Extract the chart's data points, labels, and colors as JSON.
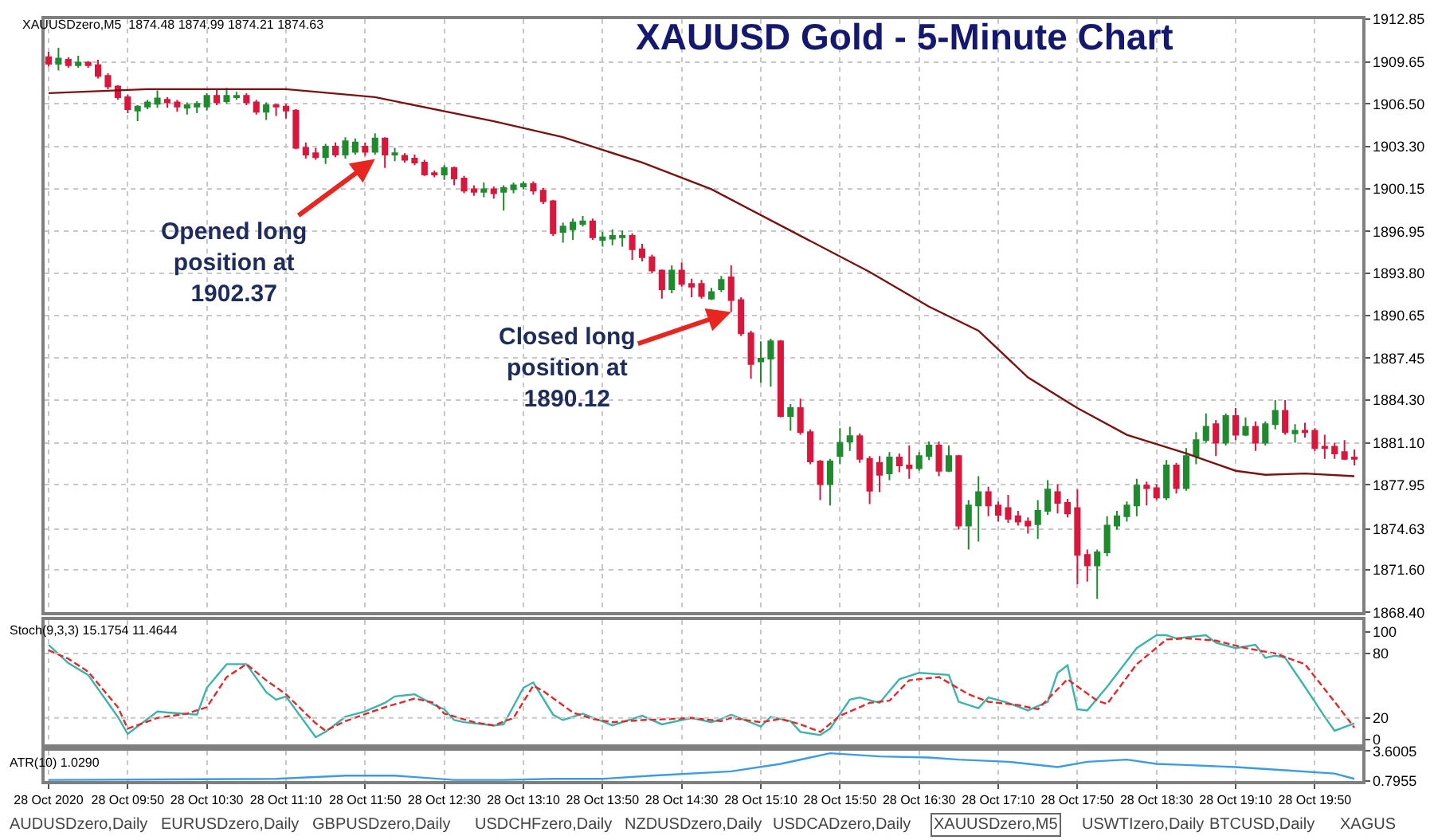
{
  "chart_data": [
    {
      "type": "candlestick",
      "title": "XAUUSD Gold - 5-Minute Chart",
      "subtitle": "XAUUSDzero,M5  1874.48 1874.99 1874.21 1874.63",
      "x": [
        "2020-10-28T09:10",
        "2020-10-28T09:15",
        "2020-10-28T09:20",
        "2020-10-28T09:25",
        "2020-10-28T09:30",
        "2020-10-28T09:35",
        "2020-10-28T09:40",
        "2020-10-28T09:45",
        "2020-10-28T09:50",
        "2020-10-28T09:55",
        "2020-10-28T10:00",
        "2020-10-28T10:05",
        "2020-10-28T10:10",
        "2020-10-28T10:15",
        "2020-10-28T10:20",
        "2020-10-28T10:25",
        "2020-10-28T10:30",
        "2020-10-28T10:35",
        "2020-10-28T10:40",
        "2020-10-28T10:45",
        "2020-10-28T10:50",
        "2020-10-28T10:55",
        "2020-10-28T11:00",
        "2020-10-28T11:05",
        "2020-10-28T11:10",
        "2020-10-28T11:15",
        "2020-10-28T11:20",
        "2020-10-28T11:25",
        "2020-10-28T11:30",
        "2020-10-28T11:35",
        "2020-10-28T11:40",
        "2020-10-28T11:45",
        "2020-10-28T11:50",
        "2020-10-28T11:55",
        "2020-10-28T12:00",
        "2020-10-28T12:05",
        "2020-10-28T12:10",
        "2020-10-28T12:15",
        "2020-10-28T12:20",
        "2020-10-28T12:25",
        "2020-10-28T12:30",
        "2020-10-28T12:35",
        "2020-10-28T12:40",
        "2020-10-28T12:45",
        "2020-10-28T12:50",
        "2020-10-28T12:55",
        "2020-10-28T13:00",
        "2020-10-28T13:05",
        "2020-10-28T13:10",
        "2020-10-28T13:15",
        "2020-10-28T13:20",
        "2020-10-28T13:25",
        "2020-10-28T13:30",
        "2020-10-28T13:35",
        "2020-10-28T13:40",
        "2020-10-28T13:45",
        "2020-10-28T13:50",
        "2020-10-28T13:55",
        "2020-10-28T14:00",
        "2020-10-28T14:05",
        "2020-10-28T14:10",
        "2020-10-28T14:15",
        "2020-10-28T14:20",
        "2020-10-28T14:25",
        "2020-10-28T14:30",
        "2020-10-28T14:35",
        "2020-10-28T14:40",
        "2020-10-28T14:45",
        "2020-10-28T14:50",
        "2020-10-28T14:55",
        "2020-10-28T15:00",
        "2020-10-28T15:05",
        "2020-10-28T15:10",
        "2020-10-28T15:15",
        "2020-10-28T15:20",
        "2020-10-28T15:25",
        "2020-10-28T15:30",
        "2020-10-28T15:35",
        "2020-10-28T15:40",
        "2020-10-28T15:45",
        "2020-10-28T15:50",
        "2020-10-28T15:55",
        "2020-10-28T16:00",
        "2020-10-28T16:05",
        "2020-10-28T16:10",
        "2020-10-28T16:15",
        "2020-10-28T16:20",
        "2020-10-28T16:25",
        "2020-10-28T16:30",
        "2020-10-28T16:35",
        "2020-10-28T16:40",
        "2020-10-28T16:45",
        "2020-10-28T16:50",
        "2020-10-28T16:55",
        "2020-10-28T17:00",
        "2020-10-28T17:05",
        "2020-10-28T17:10",
        "2020-10-28T17:15",
        "2020-10-28T17:20",
        "2020-10-28T17:25",
        "2020-10-28T17:30",
        "2020-10-28T17:35",
        "2020-10-28T17:40",
        "2020-10-28T17:45",
        "2020-10-28T17:50",
        "2020-10-28T17:55",
        "2020-10-28T18:00",
        "2020-10-28T18:05",
        "2020-10-28T18:10",
        "2020-10-28T18:15",
        "2020-10-28T18:20",
        "2020-10-28T18:25",
        "2020-10-28T18:30",
        "2020-10-28T18:35",
        "2020-10-28T18:40",
        "2020-10-28T18:45",
        "2020-10-28T18:50",
        "2020-10-28T18:55",
        "2020-10-28T19:00",
        "2020-10-28T19:05",
        "2020-10-28T19:10",
        "2020-10-28T19:15",
        "2020-10-28T19:20",
        "2020-10-28T19:25",
        "2020-10-28T19:30",
        "2020-10-28T19:35",
        "2020-10-28T19:40",
        "2020-10-28T19:45",
        "2020-10-28T19:50",
        "2020-10-28T19:55",
        "2020-10-28T20:00",
        "2020-10-28T20:05",
        "2020-10-28T20:10"
      ],
      "ohlc": [
        [
          1910.0,
          1910.4,
          1909.3,
          1909.5
        ],
        [
          1909.5,
          1910.7,
          1909.0,
          1909.9
        ],
        [
          1909.8,
          1910.0,
          1909.2,
          1909.4
        ],
        [
          1909.4,
          1910.1,
          1909.2,
          1909.6
        ],
        [
          1909.6,
          1909.7,
          1909.2,
          1909.4
        ],
        [
          1909.4,
          1909.8,
          1908.4,
          1908.6
        ],
        [
          1908.6,
          1908.8,
          1907.6,
          1907.8
        ],
        [
          1907.8,
          1907.9,
          1906.8,
          1907.0
        ],
        [
          1907.0,
          1907.2,
          1905.8,
          1906.1
        ],
        [
          1906.0,
          1906.4,
          1905.2,
          1906.3
        ],
        [
          1906.3,
          1906.8,
          1906.1,
          1906.6
        ],
        [
          1906.5,
          1907.5,
          1906.2,
          1906.9
        ],
        [
          1906.8,
          1907.0,
          1906.2,
          1906.6
        ],
        [
          1906.6,
          1906.8,
          1905.9,
          1906.3
        ],
        [
          1906.2,
          1906.6,
          1905.7,
          1906.4
        ],
        [
          1906.3,
          1906.7,
          1905.8,
          1906.5
        ],
        [
          1906.3,
          1907.3,
          1906.0,
          1907.1
        ],
        [
          1907.1,
          1907.6,
          1906.4,
          1906.6
        ],
        [
          1906.7,
          1907.7,
          1906.5,
          1907.1
        ],
        [
          1907.0,
          1907.4,
          1906.8,
          1907.1
        ],
        [
          1907.1,
          1907.3,
          1906.4,
          1906.6
        ],
        [
          1906.6,
          1906.8,
          1905.7,
          1905.9
        ],
        [
          1905.9,
          1906.6,
          1905.3,
          1906.4
        ],
        [
          1906.4,
          1906.5,
          1905.6,
          1906.3
        ],
        [
          1906.3,
          1906.5,
          1905.4,
          1906.0
        ],
        [
          1906.0,
          1906.1,
          1903.1,
          1903.2
        ],
        [
          1903.2,
          1903.6,
          1902.4,
          1902.7
        ],
        [
          1902.8,
          1903.2,
          1902.3,
          1902.5
        ],
        [
          1902.5,
          1903.5,
          1902.0,
          1903.3
        ],
        [
          1903.3,
          1903.6,
          1902.5,
          1902.7
        ],
        [
          1902.7,
          1904.0,
          1902.4,
          1903.7
        ],
        [
          1902.9,
          1903.9,
          1902.7,
          1903.6
        ],
        [
          1903.3,
          1903.6,
          1902.6,
          1902.9
        ],
        [
          1902.9,
          1904.3,
          1902.7,
          1903.9
        ],
        [
          1903.9,
          1904.0,
          1901.7,
          1902.7
        ],
        [
          1902.7,
          1903.2,
          1902.2,
          1902.8
        ],
        [
          1902.6,
          1902.8,
          1902.1,
          1902.3
        ],
        [
          1902.4,
          1902.7,
          1901.9,
          1902.1
        ],
        [
          1902.1,
          1902.3,
          1901.1,
          1901.2
        ],
        [
          1901.3,
          1901.5,
          1901.0,
          1901.2
        ],
        [
          1901.2,
          1901.9,
          1900.8,
          1901.7
        ],
        [
          1901.7,
          1901.8,
          1900.4,
          1900.9
        ],
        [
          1900.9,
          1901.1,
          1899.8,
          1900.0
        ],
        [
          1900.1,
          1900.4,
          1899.6,
          1899.9
        ],
        [
          1899.9,
          1900.6,
          1899.5,
          1900.1
        ],
        [
          1900.1,
          1900.3,
          1899.4,
          1899.8
        ],
        [
          1899.9,
          1900.4,
          1898.5,
          1900.2
        ],
        [
          1900.1,
          1900.6,
          1899.8,
          1900.4
        ],
        [
          1900.3,
          1900.7,
          1900.1,
          1900.5
        ],
        [
          1900.5,
          1900.7,
          1899.7,
          1900.0
        ],
        [
          1900.0,
          1900.2,
          1899.0,
          1899.2
        ],
        [
          1899.2,
          1899.3,
          1896.6,
          1896.8
        ],
        [
          1896.9,
          1897.6,
          1896.1,
          1897.3
        ],
        [
          1897.1,
          1897.9,
          1896.3,
          1897.6
        ],
        [
          1897.5,
          1898.1,
          1897.3,
          1897.7
        ],
        [
          1897.7,
          1897.9,
          1896.3,
          1896.5
        ],
        [
          1896.3,
          1896.9,
          1895.8,
          1896.5
        ],
        [
          1896.4,
          1897.1,
          1895.9,
          1896.6
        ],
        [
          1896.5,
          1897.0,
          1895.8,
          1896.6
        ],
        [
          1896.6,
          1896.8,
          1894.8,
          1895.6
        ],
        [
          1895.6,
          1896.0,
          1894.7,
          1895.0
        ],
        [
          1895.0,
          1895.2,
          1893.8,
          1894.0
        ],
        [
          1894.0,
          1894.1,
          1891.9,
          1892.6
        ],
        [
          1892.6,
          1894.4,
          1892.3,
          1894.0
        ],
        [
          1894.0,
          1894.6,
          1892.8,
          1893.0
        ],
        [
          1893.0,
          1893.4,
          1892.0,
          1892.8
        ],
        [
          1893.0,
          1893.3,
          1891.9,
          1892.1
        ],
        [
          1891.9,
          1892.7,
          1891.8,
          1892.4
        ],
        [
          1892.6,
          1893.6,
          1892.4,
          1893.3
        ],
        [
          1893.5,
          1894.4,
          1890.9,
          1891.8
        ],
        [
          1891.8,
          1892.0,
          1889.1,
          1889.3
        ],
        [
          1889.3,
          1889.5,
          1885.9,
          1887.0
        ],
        [
          1887.2,
          1888.7,
          1885.6,
          1887.4
        ],
        [
          1887.4,
          1888.9,
          1885.3,
          1888.7
        ],
        [
          1888.7,
          1888.8,
          1883.0,
          1883.1
        ],
        [
          1883.1,
          1884.0,
          1882.0,
          1883.7
        ],
        [
          1883.7,
          1884.4,
          1881.7,
          1881.9
        ],
        [
          1881.9,
          1882.1,
          1879.5,
          1879.7
        ],
        [
          1879.7,
          1879.8,
          1876.8,
          1878.0
        ],
        [
          1878.0,
          1879.9,
          1876.4,
          1879.7
        ],
        [
          1880.1,
          1882.2,
          1879.5,
          1881.1
        ],
        [
          1881.2,
          1882.3,
          1880.5,
          1881.6
        ],
        [
          1881.6,
          1881.8,
          1879.6,
          1879.9
        ],
        [
          1879.9,
          1880.1,
          1876.5,
          1877.5
        ],
        [
          1879.6,
          1880.1,
          1877.4,
          1878.7
        ],
        [
          1878.8,
          1880.4,
          1878.3,
          1880.0
        ],
        [
          1880.0,
          1880.3,
          1878.9,
          1879.4
        ],
        [
          1879.4,
          1880.9,
          1878.4,
          1879.2
        ],
        [
          1879.2,
          1880.4,
          1879.0,
          1880.1
        ],
        [
          1880.1,
          1881.2,
          1879.8,
          1880.9
        ],
        [
          1880.9,
          1881.2,
          1878.6,
          1879.0
        ],
        [
          1879.0,
          1880.9,
          1878.9,
          1880.1
        ],
        [
          1880.1,
          1880.2,
          1874.6,
          1874.9
        ],
        [
          1874.9,
          1876.8,
          1873.1,
          1876.4
        ],
        [
          1876.4,
          1878.6,
          1873.7,
          1877.4
        ],
        [
          1877.4,
          1877.8,
          1875.6,
          1876.4
        ],
        [
          1876.4,
          1876.7,
          1875.2,
          1875.7
        ],
        [
          1876.2,
          1877.2,
          1875.1,
          1875.4
        ],
        [
          1875.6,
          1876.0,
          1874.9,
          1875.2
        ],
        [
          1875.2,
          1875.5,
          1874.3,
          1874.9
        ],
        [
          1875.0,
          1876.8,
          1873.9,
          1876.0
        ],
        [
          1876.0,
          1878.3,
          1875.7,
          1877.6
        ],
        [
          1877.4,
          1878.0,
          1875.8,
          1876.6
        ],
        [
          1876.6,
          1876.9,
          1875.5,
          1875.8
        ],
        [
          1876.2,
          1877.6,
          1870.5,
          1872.7
        ],
        [
          1872.7,
          1873.1,
          1870.7,
          1871.9
        ],
        [
          1871.9,
          1873.1,
          1869.4,
          1872.9
        ],
        [
          1872.9,
          1875.6,
          1872.6,
          1874.9
        ],
        [
          1874.9,
          1876.0,
          1874.6,
          1875.6
        ],
        [
          1875.6,
          1876.7,
          1875.2,
          1876.4
        ],
        [
          1876.4,
          1878.4,
          1875.6,
          1877.9
        ],
        [
          1877.9,
          1878.2,
          1876.4,
          1877.7
        ],
        [
          1877.7,
          1878.0,
          1876.8,
          1877.0
        ],
        [
          1877.0,
          1879.8,
          1876.8,
          1879.4
        ],
        [
          1879.4,
          1879.6,
          1877.3,
          1877.7
        ],
        [
          1877.7,
          1880.7,
          1877.5,
          1880.1
        ],
        [
          1880.1,
          1881.9,
          1879.5,
          1881.3
        ],
        [
          1881.3,
          1883.3,
          1881.1,
          1882.3
        ],
        [
          1882.5,
          1882.8,
          1880.1,
          1881.1
        ],
        [
          1881.1,
          1883.3,
          1880.9,
          1883.1
        ],
        [
          1883.1,
          1883.7,
          1881.3,
          1881.7
        ],
        [
          1881.7,
          1883.0,
          1881.6,
          1882.3
        ],
        [
          1882.3,
          1882.7,
          1880.5,
          1881.1
        ],
        [
          1881.1,
          1882.7,
          1880.9,
          1882.5
        ],
        [
          1882.5,
          1884.3,
          1882.1,
          1883.5
        ],
        [
          1883.5,
          1884.3,
          1881.7,
          1881.9
        ],
        [
          1881.8,
          1882.5,
          1881.1,
          1882.0
        ],
        [
          1882.0,
          1882.6,
          1881.5,
          1881.9
        ],
        [
          1882.0,
          1882.2,
          1880.5,
          1880.7
        ],
        [
          1880.8,
          1881.7,
          1879.9,
          1880.7
        ],
        [
          1880.8,
          1881.1,
          1879.9,
          1880.3
        ],
        [
          1880.4,
          1881.3,
          1879.8,
          1879.9
        ],
        [
          1880.0,
          1880.6,
          1879.4,
          1879.9
        ]
      ],
      "series": [
        {
          "type": "line",
          "color": "#7a1212",
          "x": [
            "2020-10-28T09:10",
            "2020-10-28T10:00",
            "2020-10-28T11:10",
            "2020-10-28T11:55",
            "2020-10-28T12:55",
            "2020-10-28T13:30",
            "2020-10-28T14:10",
            "2020-10-28T14:45",
            "2020-10-28T15:25",
            "2020-10-28T16:05",
            "2020-10-28T16:35",
            "2020-10-28T17:00",
            "2020-10-28T17:25",
            "2020-10-28T17:50",
            "2020-10-28T18:15",
            "2020-10-28T18:45",
            "2020-10-28T19:10",
            "2020-10-28T19:25",
            "2020-10-28T19:45",
            "2020-10-28T20:10"
          ],
          "values": [
            1907.3,
            1907.6,
            1907.6,
            1907.0,
            1905.2,
            1904.0,
            1902.1,
            1900.1,
            1897.0,
            1893.9,
            1891.3,
            1889.5,
            1886.0,
            1883.7,
            1881.7,
            1880.3,
            1879.0,
            1878.7,
            1878.8,
            1878.6
          ]
        }
      ],
      "xlim": [
        "2020-10-28T09:08",
        "2020-10-28T20:14"
      ],
      "ylim": [
        1868.4,
        1912.85
      ],
      "yticks": [
        1912.85,
        1909.65,
        {
          "value": 1906.5,
          "label": "1906.50"
        },
        {
          "value": 1903.3,
          "label": "1903.30"
        },
        1900.15,
        1896.95,
        {
          "value": 1893.8,
          "label": "1893.80"
        },
        1890.65,
        1887.45,
        {
          "value": 1884.3,
          "label": "1884.30"
        },
        {
          "value": 1881.1,
          "label": "1881.10"
        },
        1877.95,
        1874.63,
        {
          "value": 1871.6,
          "label": "1871.60"
        },
        {
          "value": 1868.4,
          "label": "1868.40"
        }
      ],
      "annotations": [
        {
          "text": "Opened long\nposition at\n1902.37",
          "x": "2020-10-28T11:55",
          "y": 1902.37
        },
        {
          "text": "Closed long\nposition at\n1890.12",
          "x": "2020-10-28T14:55",
          "y": 1890.9
        }
      ],
      "grid": true,
      "tick_labels": "y"
    },
    {
      "type": "line",
      "title": "Stoch(9,3,3) 15.1754 11.4644",
      "series": [
        {
          "color": "#3bb5ab",
          "line_style": "solid",
          "x": [
            "2020-10-28T09:10",
            "2020-10-28T09:20",
            "2020-10-28T09:30",
            "2020-10-28T09:45",
            "2020-10-28T09:50",
            "2020-10-28T10:05",
            "2020-10-28T10:10",
            "2020-10-28T10:25",
            "2020-10-28T10:30",
            "2020-10-28T10:40",
            "2020-10-28T10:50",
            "2020-10-28T11:00",
            "2020-10-28T11:05",
            "2020-10-28T11:10",
            "2020-10-28T11:25",
            "2020-10-28T11:30",
            "2020-10-28T11:40",
            "2020-10-28T11:50",
            "2020-10-28T12:00",
            "2020-10-28T12:05",
            "2020-10-28T12:15",
            "2020-10-28T12:25",
            "2020-10-28T12:30",
            "2020-10-28T12:35",
            "2020-10-28T12:40",
            "2020-10-28T12:55",
            "2020-10-28T13:00",
            "2020-10-28T13:10",
            "2020-10-28T13:15",
            "2020-10-28T13:25",
            "2020-10-28T13:30",
            "2020-10-28T13:40",
            "2020-10-28T13:55",
            "2020-10-28T14:10",
            "2020-10-28T14:20",
            "2020-10-28T14:35",
            "2020-10-28T14:45",
            "2020-10-28T14:50",
            "2020-10-28T14:55",
            "2020-10-28T15:10",
            "2020-10-28T15:15",
            "2020-10-28T15:25",
            "2020-10-28T15:30",
            "2020-10-28T15:40",
            "2020-10-28T15:45",
            "2020-10-28T15:55",
            "2020-10-28T16:00",
            "2020-10-28T16:10",
            "2020-10-28T16:20",
            "2020-10-28T16:30",
            "2020-10-28T16:45",
            "2020-10-28T16:50",
            "2020-10-28T17:00",
            "2020-10-28T17:05",
            "2020-10-28T17:15",
            "2020-10-28T17:25",
            "2020-10-28T17:35",
            "2020-10-28T17:40",
            "2020-10-28T17:45",
            "2020-10-28T17:50",
            "2020-10-28T17:55",
            "2020-10-28T18:05",
            "2020-10-28T18:20",
            "2020-10-28T18:30",
            "2020-10-28T18:35",
            "2020-10-28T18:40",
            "2020-10-28T18:55",
            "2020-10-28T19:00",
            "2020-10-28T19:10",
            "2020-10-28T19:20",
            "2020-10-28T19:25",
            "2020-10-28T19:30",
            "2020-10-28T19:35",
            "2020-10-28T19:45",
            "2020-10-28T19:55",
            "2020-10-28T20:00",
            "2020-10-28T20:10"
          ],
          "values": [
            88,
            71,
            60,
            21,
            5,
            26,
            25,
            23,
            48,
            70,
            70,
            44,
            37,
            40,
            2,
            7,
            21,
            26,
            34,
            40,
            42,
            32,
            28,
            18,
            16,
            13,
            14,
            48,
            53,
            23,
            18,
            24,
            13,
            22,
            14,
            20,
            16,
            19,
            23,
            12,
            21,
            17,
            7,
            4,
            10,
            37,
            39,
            34,
            56,
            62,
            60,
            35,
            29,
            39,
            34,
            27,
            35,
            62,
            69,
            28,
            27,
            49,
            85,
            97,
            97,
            94,
            97,
            90,
            85,
            88,
            76,
            78,
            76,
            49,
            21,
            8,
            15
          ]
        },
        {
          "color": "#e8262a",
          "line_style": "dashed",
          "x": [
            "2020-10-28T09:10",
            "2020-10-28T09:20",
            "2020-10-28T09:30",
            "2020-10-28T09:45",
            "2020-10-28T09:50",
            "2020-10-28T10:05",
            "2020-10-28T10:20",
            "2020-10-28T10:30",
            "2020-10-28T10:40",
            "2020-10-28T10:50",
            "2020-10-28T11:00",
            "2020-10-28T11:10",
            "2020-10-28T11:25",
            "2020-10-28T11:30",
            "2020-10-28T11:40",
            "2020-10-28T12:00",
            "2020-10-28T12:15",
            "2020-10-28T12:25",
            "2020-10-28T12:30",
            "2020-10-28T12:45",
            "2020-10-28T12:55",
            "2020-10-28T13:05",
            "2020-10-28T13:15",
            "2020-10-28T13:20",
            "2020-10-28T13:35",
            "2020-10-28T13:45",
            "2020-10-28T13:55",
            "2020-10-28T14:10",
            "2020-10-28T14:25",
            "2020-10-28T14:35",
            "2020-10-28T14:50",
            "2020-10-28T14:55",
            "2020-10-28T15:10",
            "2020-10-28T15:20",
            "2020-10-28T15:30",
            "2020-10-28T15:40",
            "2020-10-28T15:50",
            "2020-10-28T16:05",
            "2020-10-28T16:15",
            "2020-10-28T16:25",
            "2020-10-28T16:40",
            "2020-10-28T16:55",
            "2020-10-28T17:05",
            "2020-10-28T17:20",
            "2020-10-28T17:30",
            "2020-10-28T17:45",
            "2020-10-28T18:00",
            "2020-10-28T18:05",
            "2020-10-28T18:20",
            "2020-10-28T18:35",
            "2020-10-28T18:45",
            "2020-10-28T19:00",
            "2020-10-28T19:15",
            "2020-10-28T19:30",
            "2020-10-28T19:45",
            "2020-10-28T20:00",
            "2020-10-28T20:10"
          ],
          "values": [
            83,
            75,
            63,
            30,
            10,
            20,
            24,
            30,
            58,
            70,
            55,
            42,
            15,
            8,
            17,
            30,
            38,
            34,
            24,
            16,
            13,
            20,
            50,
            45,
            25,
            19,
            16,
            18,
            19,
            20,
            17,
            20,
            16,
            19,
            14,
            7,
            22,
            34,
            36,
            55,
            58,
            42,
            35,
            32,
            28,
            56,
            36,
            33,
            70,
            93,
            94,
            92,
            85,
            80,
            70,
            35,
            11
          ]
        }
      ],
      "xlim": [
        "2020-10-28T09:08",
        "2020-10-28T20:14"
      ],
      "ylim": [
        -5,
        111
      ],
      "yticks": [
        100,
        80,
        20,
        0
      ],
      "ref_lines": [
        {
          "axis": "y",
          "value": 80,
          "color": "#c8c8c8",
          "line_style": "dotted"
        },
        {
          "axis": "y",
          "value": 20,
          "color": "#c8c8c8",
          "line_style": "dotted"
        }
      ],
      "grid": "x",
      "tick_labels": "y"
    },
    {
      "type": "line",
      "title": "ATR(10) 1.0290",
      "series": [
        {
          "color": "#3d9be3",
          "line_style": "solid",
          "x": [
            "2020-10-28T09:10",
            "2020-10-28T11:05",
            "2020-10-28T11:40",
            "2020-10-28T12:05",
            "2020-10-28T12:35",
            "2020-10-28T13:00",
            "2020-10-28T13:25",
            "2020-10-28T13:50",
            "2020-10-28T14:15",
            "2020-10-28T14:55",
            "2020-10-28T15:20",
            "2020-10-28T15:35",
            "2020-10-28T15:45",
            "2020-10-28T16:10",
            "2020-10-28T16:35",
            "2020-10-28T16:50",
            "2020-10-28T17:15",
            "2020-10-28T17:40",
            "2020-10-28T17:55",
            "2020-10-28T18:15",
            "2020-10-28T18:30",
            "2020-10-28T18:45",
            "2020-10-28T19:10",
            "2020-10-28T19:35",
            "2020-10-28T20:00",
            "2020-10-28T20:10"
          ],
          "values": [
            0.9,
            1.0,
            1.3,
            1.3,
            0.9,
            0.9,
            1.0,
            1.0,
            1.3,
            1.7,
            2.4,
            3.0,
            3.4,
            3.1,
            3.0,
            2.8,
            2.6,
            2.1,
            2.6,
            2.8,
            2.4,
            2.3,
            2.1,
            1.8,
            1.5,
            1.0
          ]
        }
      ],
      "xlim": [
        "2020-10-28T09:08",
        "2020-10-28T20:14"
      ],
      "xticks": [
        {
          "value": "2020-10-28T09:10",
          "label": "28 Oct 2020"
        },
        {
          "value": "2020-10-28T09:50",
          "label": "28 Oct 09:50"
        },
        {
          "value": "2020-10-28T10:30",
          "label": "28 Oct 10:30"
        },
        {
          "value": "2020-10-28T11:10",
          "label": "28 Oct 11:10"
        },
        {
          "value": "2020-10-28T11:50",
          "label": "28 Oct 11:50"
        },
        {
          "value": "2020-10-28T12:30",
          "label": "28 Oct 12:30"
        },
        {
          "value": "2020-10-28T13:10",
          "label": "28 Oct 13:10"
        },
        {
          "value": "2020-10-28T13:50",
          "label": "28 Oct 13:50"
        },
        {
          "value": "2020-10-28T14:30",
          "label": "28 Oct 14:30"
        },
        {
          "value": "2020-10-28T15:10",
          "label": "28 Oct 15:10"
        },
        {
          "value": "2020-10-28T15:50",
          "label": "28 Oct 15:50"
        },
        {
          "value": "2020-10-28T16:30",
          "label": "28 Oct 16:30"
        },
        {
          "value": "2020-10-28T17:10",
          "label": "28 Oct 17:10"
        },
        {
          "value": "2020-10-28T17:50",
          "label": "28 Oct 17:50"
        },
        {
          "value": "2020-10-28T18:30",
          "label": "28 Oct 18:30"
        },
        {
          "value": "2020-10-28T19:10",
          "label": "28 Oct 19:10"
        },
        {
          "value": "2020-10-28T19:50",
          "label": "28 Oct 19:50"
        }
      ],
      "ylim": [
        0.7955,
        3.6005
      ],
      "yticks": [
        3.6005,
        0.7955
      ],
      "annotations": [
        "AUDUSDzero,Daily",
        "EURUSDzero,Daily",
        "GBPUSDzero,Daily",
        "USDCHFzero,Daily",
        "NZDUSDzero,Daily",
        "USDCADzero,Daily",
        "XAUUSDzero,M5",
        "USWTIzero,Daily",
        "BTCUSD,Daily",
        "XAGUS"
      ],
      "grid": "x"
    }
  ]
}
